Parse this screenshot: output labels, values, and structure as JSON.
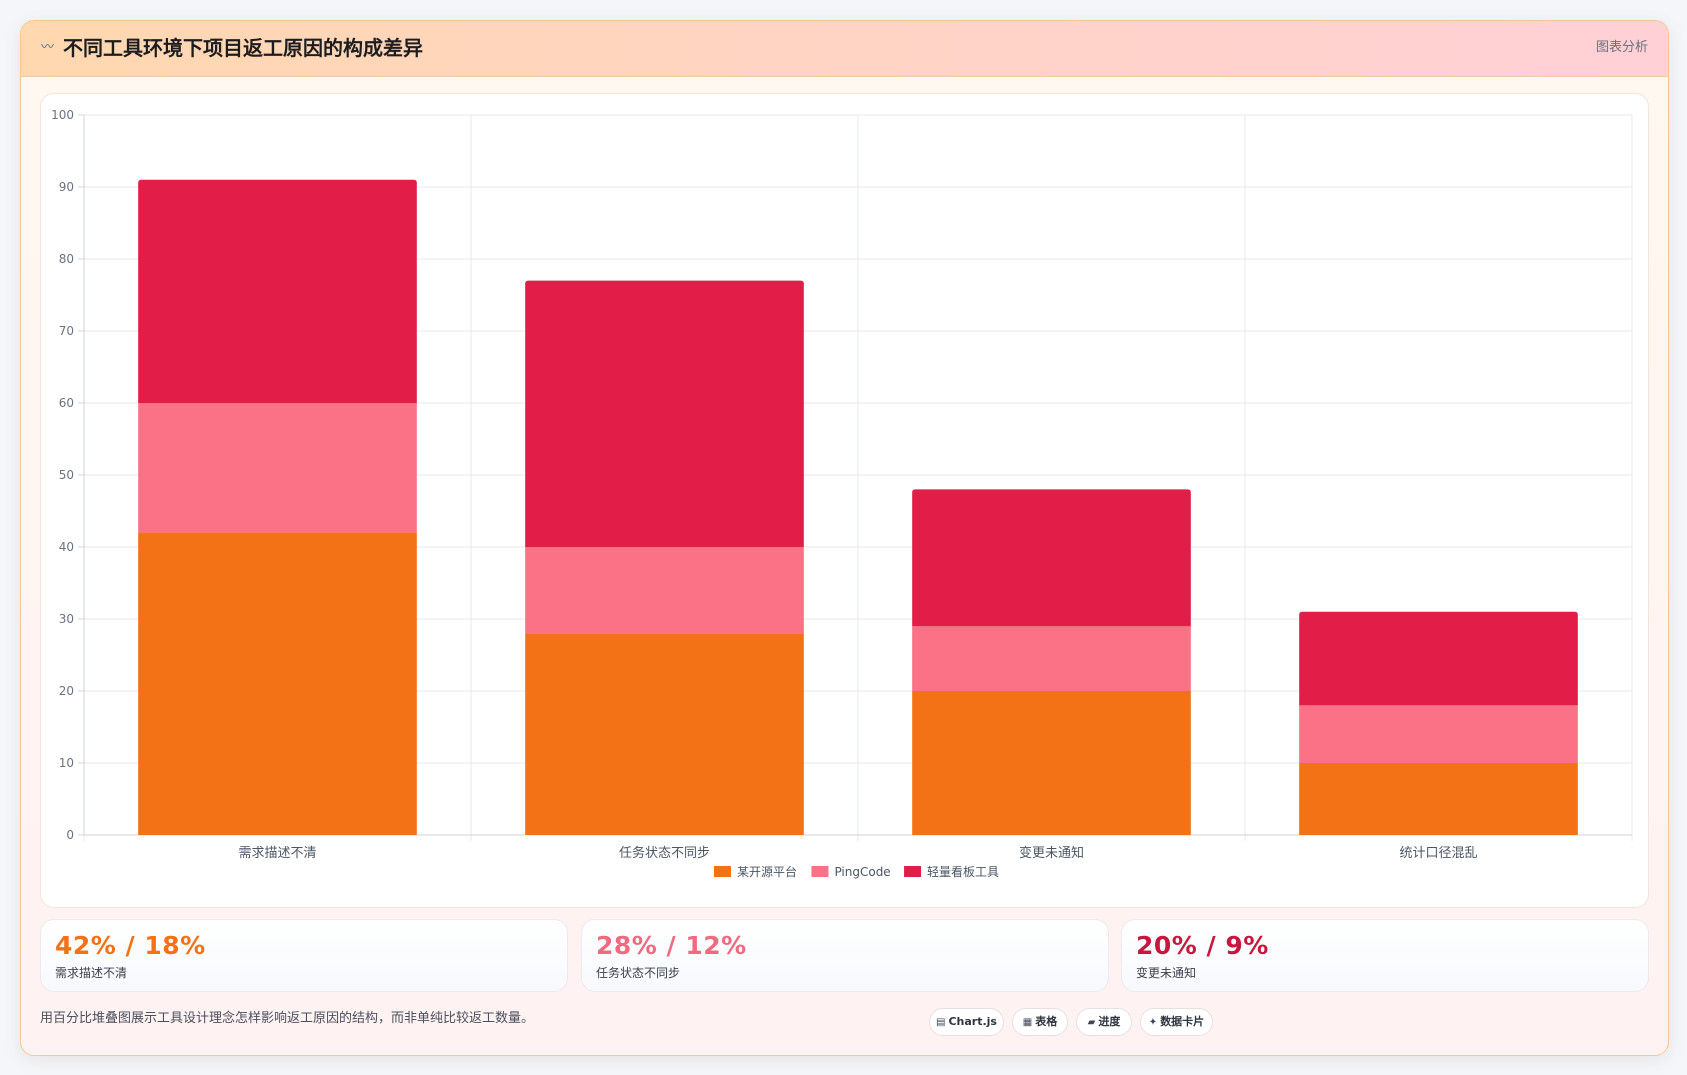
{
  "header": {
    "icon": "wave-icon",
    "title": "不同工具环境下项目返工原因的构成差异",
    "tag": "图表分析"
  },
  "chart_data": {
    "type": "bar",
    "stacked": true,
    "categories": [
      "需求描述不清",
      "任务状态不同步",
      "变更未通知",
      "统计口径混乱"
    ],
    "series": [
      {
        "name": "某开源平台",
        "color": "#f47216",
        "values": [
          42,
          28,
          20,
          10
        ]
      },
      {
        "name": "PingCode",
        "color": "#fb7185",
        "values": [
          18,
          12,
          9,
          8
        ]
      },
      {
        "name": "轻量看板工具",
        "color": "#e11d48",
        "values": [
          31,
          37,
          19,
          13
        ]
      }
    ],
    "ylim": [
      0,
      100
    ],
    "yticks": [
      "0",
      "10",
      "20",
      "30",
      "40",
      "50",
      "60",
      "70",
      "80",
      "90",
      "100"
    ],
    "grid": true,
    "legend": "bottom"
  },
  "kpis": [
    {
      "value": "42% / 18%",
      "label": "需求描述不清",
      "color": "#f47216"
    },
    {
      "value": "28% / 12%",
      "label": "任务状态不同步",
      "color": "#f06b81"
    },
    {
      "value": "20% / 9%",
      "label": "变更未通知",
      "color": "#c8173f"
    }
  ],
  "footer": {
    "note": "用百分比堆叠图展示工具设计理念怎样影响返工原因的结构，而非单纯比较返工数量。",
    "pills": [
      {
        "icon": "chart-icon",
        "label": "Chart.js"
      },
      {
        "icon": "table-icon",
        "label": "表格"
      },
      {
        "icon": "progress-icon",
        "label": "进度"
      },
      {
        "icon": "sparkle-icon",
        "label": "数据卡片"
      }
    ]
  }
}
